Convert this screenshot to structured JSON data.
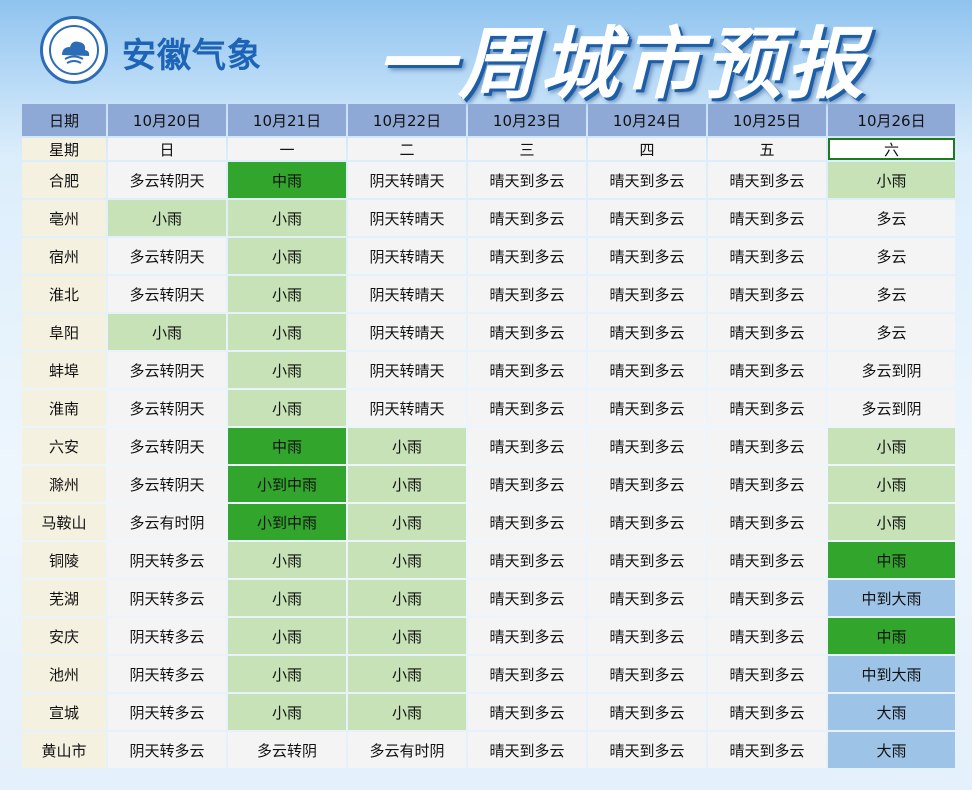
{
  "header": {
    "org_name": "安徽气象",
    "title": "一周城市预报"
  },
  "colors": {
    "no_rain": "#f4f4f4",
    "light_rain": "#c6e2b6",
    "moderate_rain": "#31a52c",
    "heavy_rain": "#9dc3e6",
    "header_row": "#8ea9d6",
    "city_column": "#f4f1e0"
  },
  "table": {
    "date_label": "日期",
    "weekday_label": "星期",
    "dates": [
      "10月20日",
      "10月21日",
      "10月22日",
      "10月23日",
      "10月24日",
      "10月25日",
      "10月26日"
    ],
    "weekdays": [
      "日",
      "一",
      "二",
      "三",
      "四",
      "五",
      "六"
    ],
    "selected_weekday_index": 6,
    "rows": [
      {
        "city": "合肥",
        "cells": [
          [
            "多云转阴天",
            "none"
          ],
          [
            "中雨",
            "mod"
          ],
          [
            "阴天转晴天",
            "none"
          ],
          [
            "晴天到多云",
            "none"
          ],
          [
            "晴天到多云",
            "none"
          ],
          [
            "晴天到多云",
            "none"
          ],
          [
            "小雨",
            "light"
          ]
        ]
      },
      {
        "city": "亳州",
        "cells": [
          [
            "小雨",
            "light"
          ],
          [
            "小雨",
            "light"
          ],
          [
            "阴天转晴天",
            "none"
          ],
          [
            "晴天到多云",
            "none"
          ],
          [
            "晴天到多云",
            "none"
          ],
          [
            "晴天到多云",
            "none"
          ],
          [
            "多云",
            "none"
          ]
        ]
      },
      {
        "city": "宿州",
        "cells": [
          [
            "多云转阴天",
            "none"
          ],
          [
            "小雨",
            "light"
          ],
          [
            "阴天转晴天",
            "none"
          ],
          [
            "晴天到多云",
            "none"
          ],
          [
            "晴天到多云",
            "none"
          ],
          [
            "晴天到多云",
            "none"
          ],
          [
            "多云",
            "none"
          ]
        ]
      },
      {
        "city": "淮北",
        "cells": [
          [
            "多云转阴天",
            "none"
          ],
          [
            "小雨",
            "light"
          ],
          [
            "阴天转晴天",
            "none"
          ],
          [
            "晴天到多云",
            "none"
          ],
          [
            "晴天到多云",
            "none"
          ],
          [
            "晴天到多云",
            "none"
          ],
          [
            "多云",
            "none"
          ]
        ]
      },
      {
        "city": "阜阳",
        "cells": [
          [
            "小雨",
            "light"
          ],
          [
            "小雨",
            "light"
          ],
          [
            "阴天转晴天",
            "none"
          ],
          [
            "晴天到多云",
            "none"
          ],
          [
            "晴天到多云",
            "none"
          ],
          [
            "晴天到多云",
            "none"
          ],
          [
            "多云",
            "none"
          ]
        ]
      },
      {
        "city": "蚌埠",
        "cells": [
          [
            "多云转阴天",
            "none"
          ],
          [
            "小雨",
            "light"
          ],
          [
            "阴天转晴天",
            "none"
          ],
          [
            "晴天到多云",
            "none"
          ],
          [
            "晴天到多云",
            "none"
          ],
          [
            "晴天到多云",
            "none"
          ],
          [
            "多云到阴",
            "none"
          ]
        ]
      },
      {
        "city": "淮南",
        "cells": [
          [
            "多云转阴天",
            "none"
          ],
          [
            "小雨",
            "light"
          ],
          [
            "阴天转晴天",
            "none"
          ],
          [
            "晴天到多云",
            "none"
          ],
          [
            "晴天到多云",
            "none"
          ],
          [
            "晴天到多云",
            "none"
          ],
          [
            "多云到阴",
            "none"
          ]
        ]
      },
      {
        "city": "六安",
        "cells": [
          [
            "多云转阴天",
            "none"
          ],
          [
            "中雨",
            "mod"
          ],
          [
            "小雨",
            "light"
          ],
          [
            "晴天到多云",
            "none"
          ],
          [
            "晴天到多云",
            "none"
          ],
          [
            "晴天到多云",
            "none"
          ],
          [
            "小雨",
            "light"
          ]
        ]
      },
      {
        "city": "滁州",
        "cells": [
          [
            "多云转阴天",
            "none"
          ],
          [
            "小到中雨",
            "mod"
          ],
          [
            "小雨",
            "light"
          ],
          [
            "晴天到多云",
            "none"
          ],
          [
            "晴天到多云",
            "none"
          ],
          [
            "晴天到多云",
            "none"
          ],
          [
            "小雨",
            "light"
          ]
        ]
      },
      {
        "city": "马鞍山",
        "cells": [
          [
            "多云有时阴",
            "none"
          ],
          [
            "小到中雨",
            "mod"
          ],
          [
            "小雨",
            "light"
          ],
          [
            "晴天到多云",
            "none"
          ],
          [
            "晴天到多云",
            "none"
          ],
          [
            "晴天到多云",
            "none"
          ],
          [
            "小雨",
            "light"
          ]
        ]
      },
      {
        "city": "铜陵",
        "cells": [
          [
            "阴天转多云",
            "none"
          ],
          [
            "小雨",
            "light"
          ],
          [
            "小雨",
            "light"
          ],
          [
            "晴天到多云",
            "none"
          ],
          [
            "晴天到多云",
            "none"
          ],
          [
            "晴天到多云",
            "none"
          ],
          [
            "中雨",
            "mod"
          ]
        ]
      },
      {
        "city": "芜湖",
        "cells": [
          [
            "阴天转多云",
            "none"
          ],
          [
            "小雨",
            "light"
          ],
          [
            "小雨",
            "light"
          ],
          [
            "晴天到多云",
            "none"
          ],
          [
            "晴天到多云",
            "none"
          ],
          [
            "晴天到多云",
            "none"
          ],
          [
            "中到大雨",
            "heavy"
          ]
        ]
      },
      {
        "city": "安庆",
        "cells": [
          [
            "阴天转多云",
            "none"
          ],
          [
            "小雨",
            "light"
          ],
          [
            "小雨",
            "light"
          ],
          [
            "晴天到多云",
            "none"
          ],
          [
            "晴天到多云",
            "none"
          ],
          [
            "晴天到多云",
            "none"
          ],
          [
            "中雨",
            "mod"
          ]
        ]
      },
      {
        "city": "池州",
        "cells": [
          [
            "阴天转多云",
            "none"
          ],
          [
            "小雨",
            "light"
          ],
          [
            "小雨",
            "light"
          ],
          [
            "晴天到多云",
            "none"
          ],
          [
            "晴天到多云",
            "none"
          ],
          [
            "晴天到多云",
            "none"
          ],
          [
            "中到大雨",
            "heavy"
          ]
        ]
      },
      {
        "city": "宣城",
        "cells": [
          [
            "阴天转多云",
            "none"
          ],
          [
            "小雨",
            "light"
          ],
          [
            "小雨",
            "light"
          ],
          [
            "晴天到多云",
            "none"
          ],
          [
            "晴天到多云",
            "none"
          ],
          [
            "晴天到多云",
            "none"
          ],
          [
            "大雨",
            "heavy"
          ]
        ]
      },
      {
        "city": "黄山市",
        "cells": [
          [
            "阴天转多云",
            "none"
          ],
          [
            "多云转阴",
            "none"
          ],
          [
            "多云有时阴",
            "none"
          ],
          [
            "晴天到多云",
            "none"
          ],
          [
            "晴天到多云",
            "none"
          ],
          [
            "晴天到多云",
            "none"
          ],
          [
            "大雨",
            "heavy"
          ]
        ]
      }
    ]
  }
}
